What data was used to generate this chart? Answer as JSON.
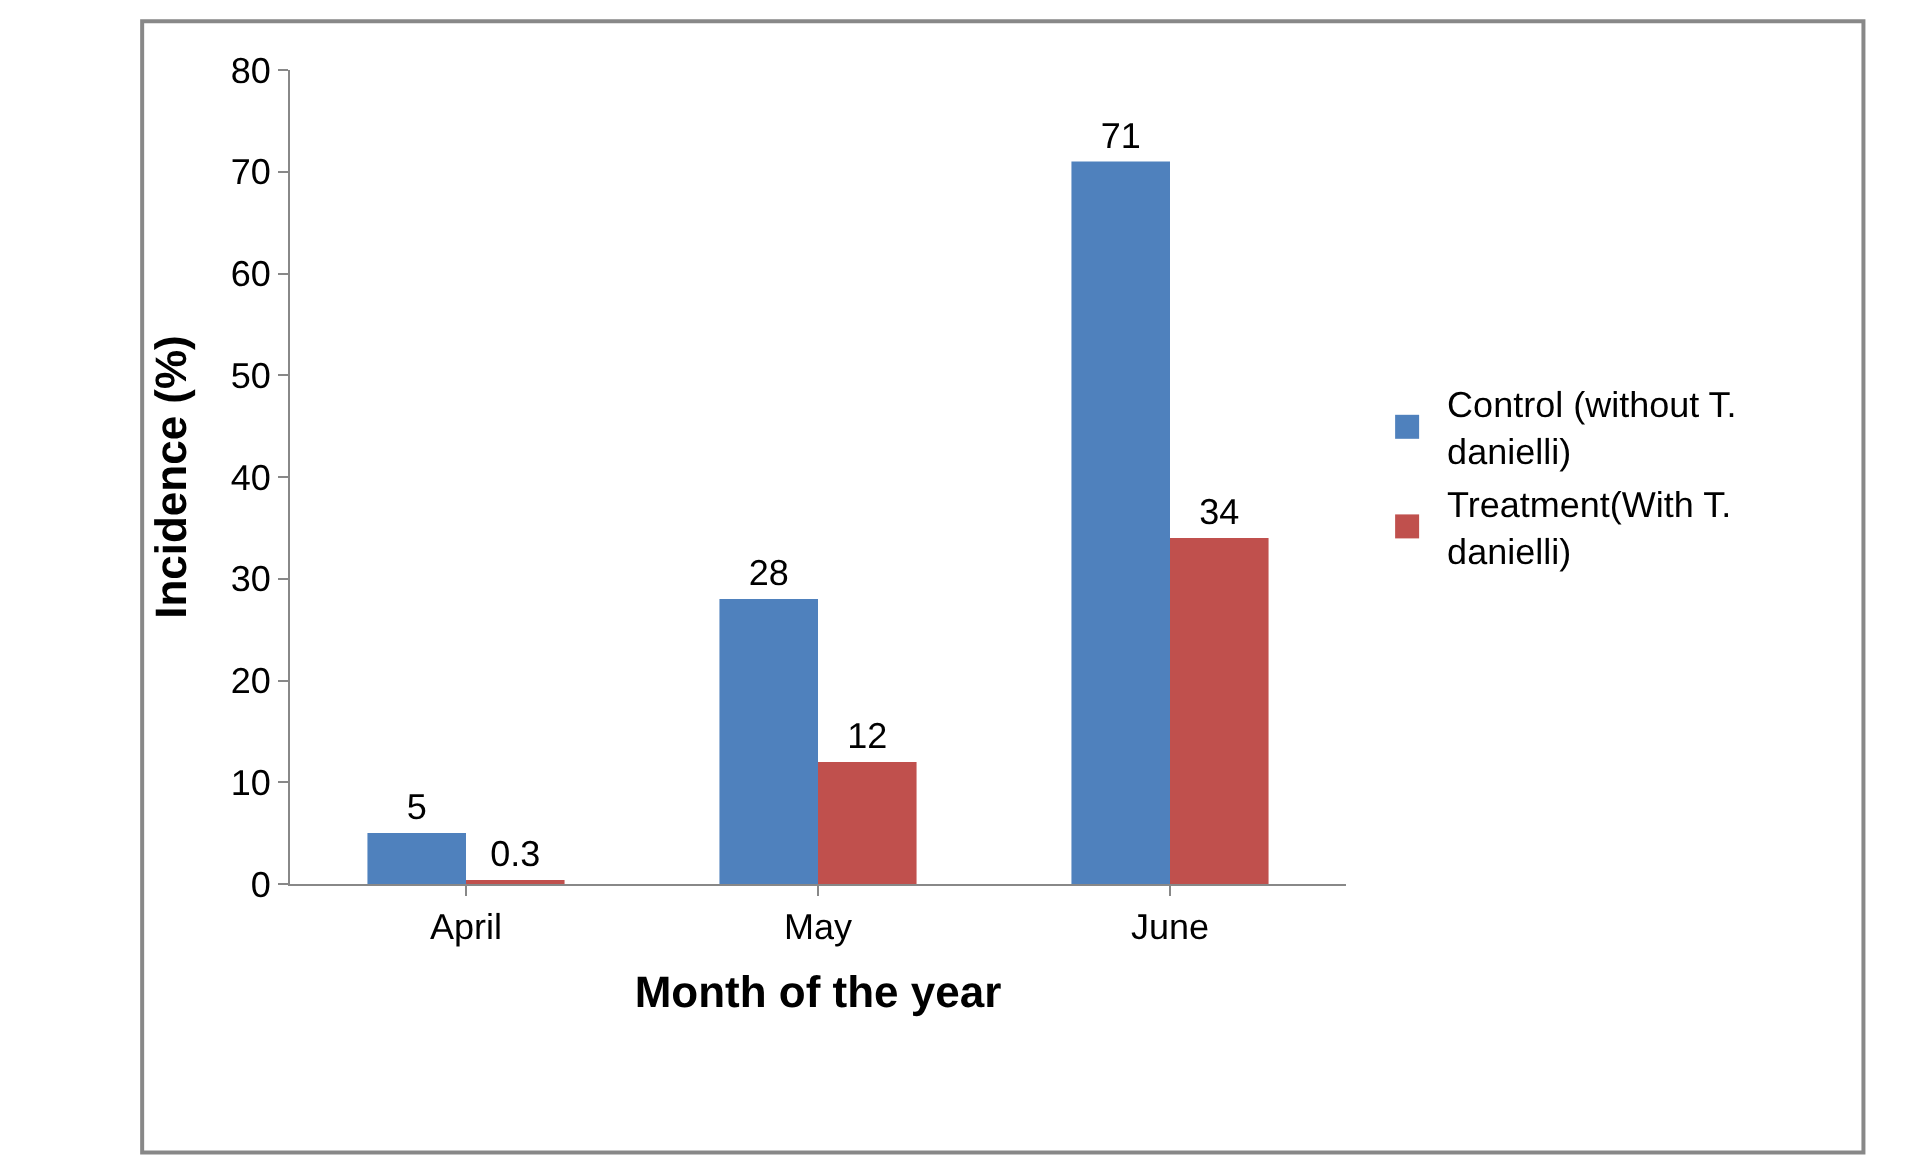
{
  "chart_data": {
    "type": "bar",
    "xlabel": "Month of the year",
    "ylabel": "Incidence (%)",
    "categories": [
      "April",
      "May",
      "June"
    ],
    "series": [
      {
        "name": "Control (without T. danielli)",
        "color": "#4f81bd",
        "values": [
          5,
          28,
          71
        ]
      },
      {
        "name": "Treatment(With T. danielli)",
        "color": "#c0504d",
        "values": [
          0.3,
          12,
          34
        ]
      }
    ],
    "ylim": [
      0,
      80
    ],
    "yticks": [
      0,
      10,
      20,
      30,
      40,
      50,
      60,
      70,
      80
    ],
    "grid": false,
    "legend": "right",
    "data_labels": true
  }
}
